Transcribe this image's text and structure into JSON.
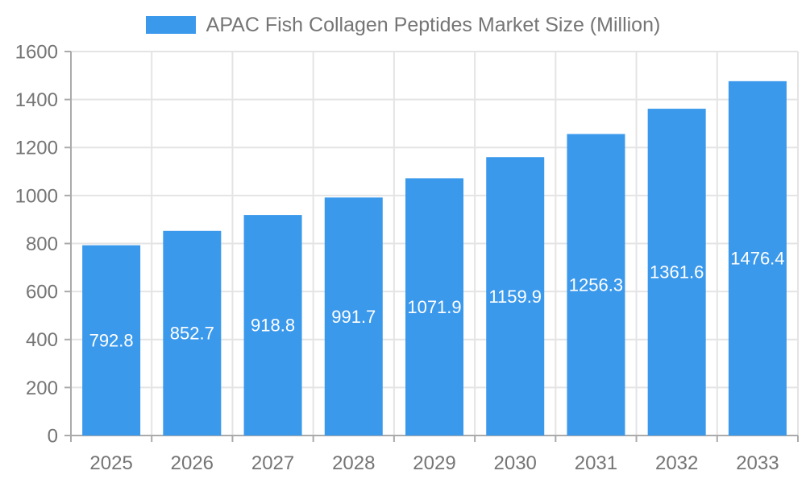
{
  "chart_data": {
    "type": "bar",
    "title": "APAC Fish Collagen Peptides Market Size (Million)",
    "legend_entries": [
      "APAC Fish Collagen Peptides Market Size (Million)"
    ],
    "legend_position": "top-center",
    "categories": [
      "2025",
      "2026",
      "2027",
      "2028",
      "2029",
      "2030",
      "2031",
      "2032",
      "2033"
    ],
    "values": [
      792.8,
      852.7,
      918.8,
      991.7,
      1071.9,
      1159.9,
      1256.3,
      1361.6,
      1476.4
    ],
    "value_labels": [
      "792.8",
      "852.7",
      "918.8",
      "991.7",
      "1071.9",
      "1159.9",
      "1256.3",
      "1361.6",
      "1476.4"
    ],
    "xlabel": "",
    "ylabel": "",
    "ylim": [
      0,
      1600
    ],
    "ytick_step": 200,
    "ytick_labels": [
      "0",
      "200",
      "400",
      "600",
      "800",
      "1000",
      "1200",
      "1400",
      "1600"
    ],
    "grid": true,
    "colors": {
      "bar": "#3b99ec",
      "grid_line": "#e4e4e4",
      "axis_line": "#aaaaaa",
      "tick_text": "#757575",
      "legend_text": "#757575",
      "value_label_text": "#ffffff",
      "background": "#ffffff"
    }
  }
}
